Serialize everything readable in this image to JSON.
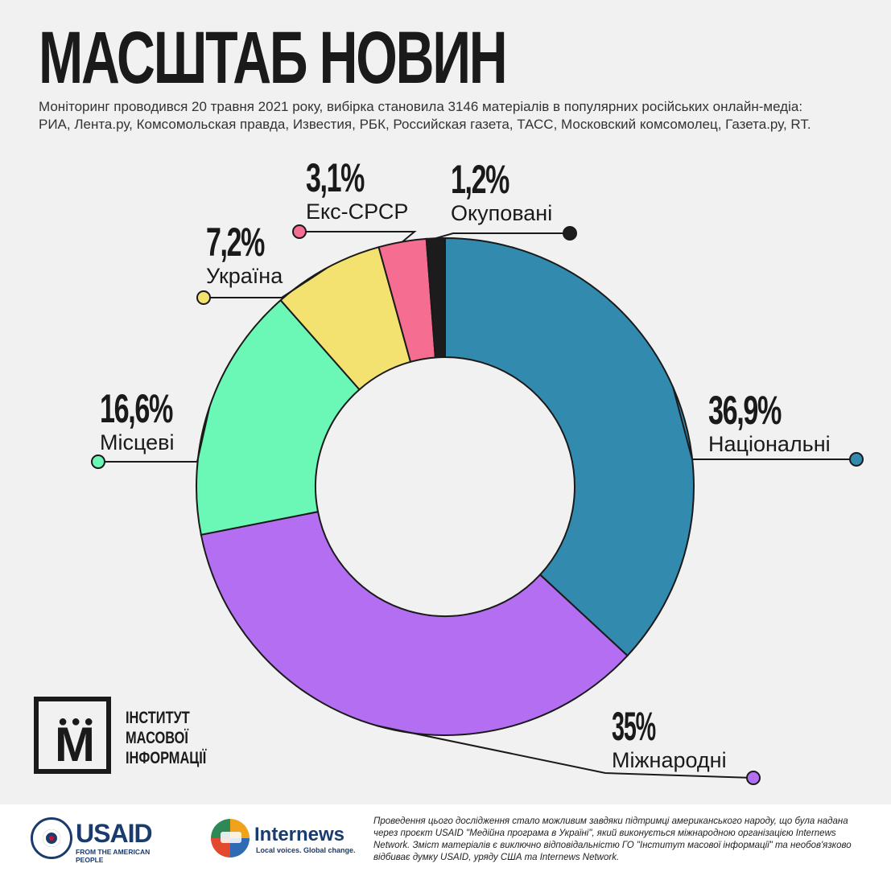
{
  "header": {
    "title": "МАСШТАБ НОВИН",
    "subtitle": "Моніторинг проводився 20 травня 2021 року, вибірка становила  3146 матеріалів в популярних російських онлайн-медіа: РИА, Лента.ру, Комсомольская правда, Известия, РБК, Российская газета, ТАСС, Московский комсомолец, Газета.ру, RT."
  },
  "chart_data": {
    "type": "pie",
    "donut": true,
    "slices": [
      {
        "category": "Національні",
        "value": 36.9,
        "label": "36,9%",
        "color": "#328aae"
      },
      {
        "category": "Міжнародні",
        "value": 35,
        "label": "35%",
        "color": "#b36ef2"
      },
      {
        "category": "Місцеві",
        "value": 16.6,
        "label": "16,6%",
        "color": "#6bf7b6"
      },
      {
        "category": "Україна",
        "value": 7.2,
        "label": "7,2%",
        "color": "#f3e26f"
      },
      {
        "category": "Екс-СРСР",
        "value": 3.1,
        "label": "3,1%",
        "color": "#f66d92"
      },
      {
        "category": "Окуповані",
        "value": 1.2,
        "label": "1,2%",
        "color": "#1c1c1c"
      }
    ]
  },
  "logo": {
    "imi_lines": [
      "ІНСТИТУТ",
      "МАСОВОЇ",
      "ІНФОРМАЦІЇ"
    ],
    "imi_mark": "М"
  },
  "footer": {
    "usaid_word": "USAID",
    "usaid_tagline": "FROM THE AMERICAN PEOPLE",
    "internews_word": "Internews",
    "internews_tagline": "Local voices. Global change.",
    "disclaimer": "Проведення цього дослідження стало можливим завдяки підтримці американського народу, що була надана через проєкт USAID \"Медійна програма в Україні\", який виконується міжнародною організацією Internews Network. Зміст матеріалів є виключно відповідальністю ГО \"Інститут масової інформації\" та необов'язково відбиває думку USAID, уряду США та Internews Network."
  }
}
